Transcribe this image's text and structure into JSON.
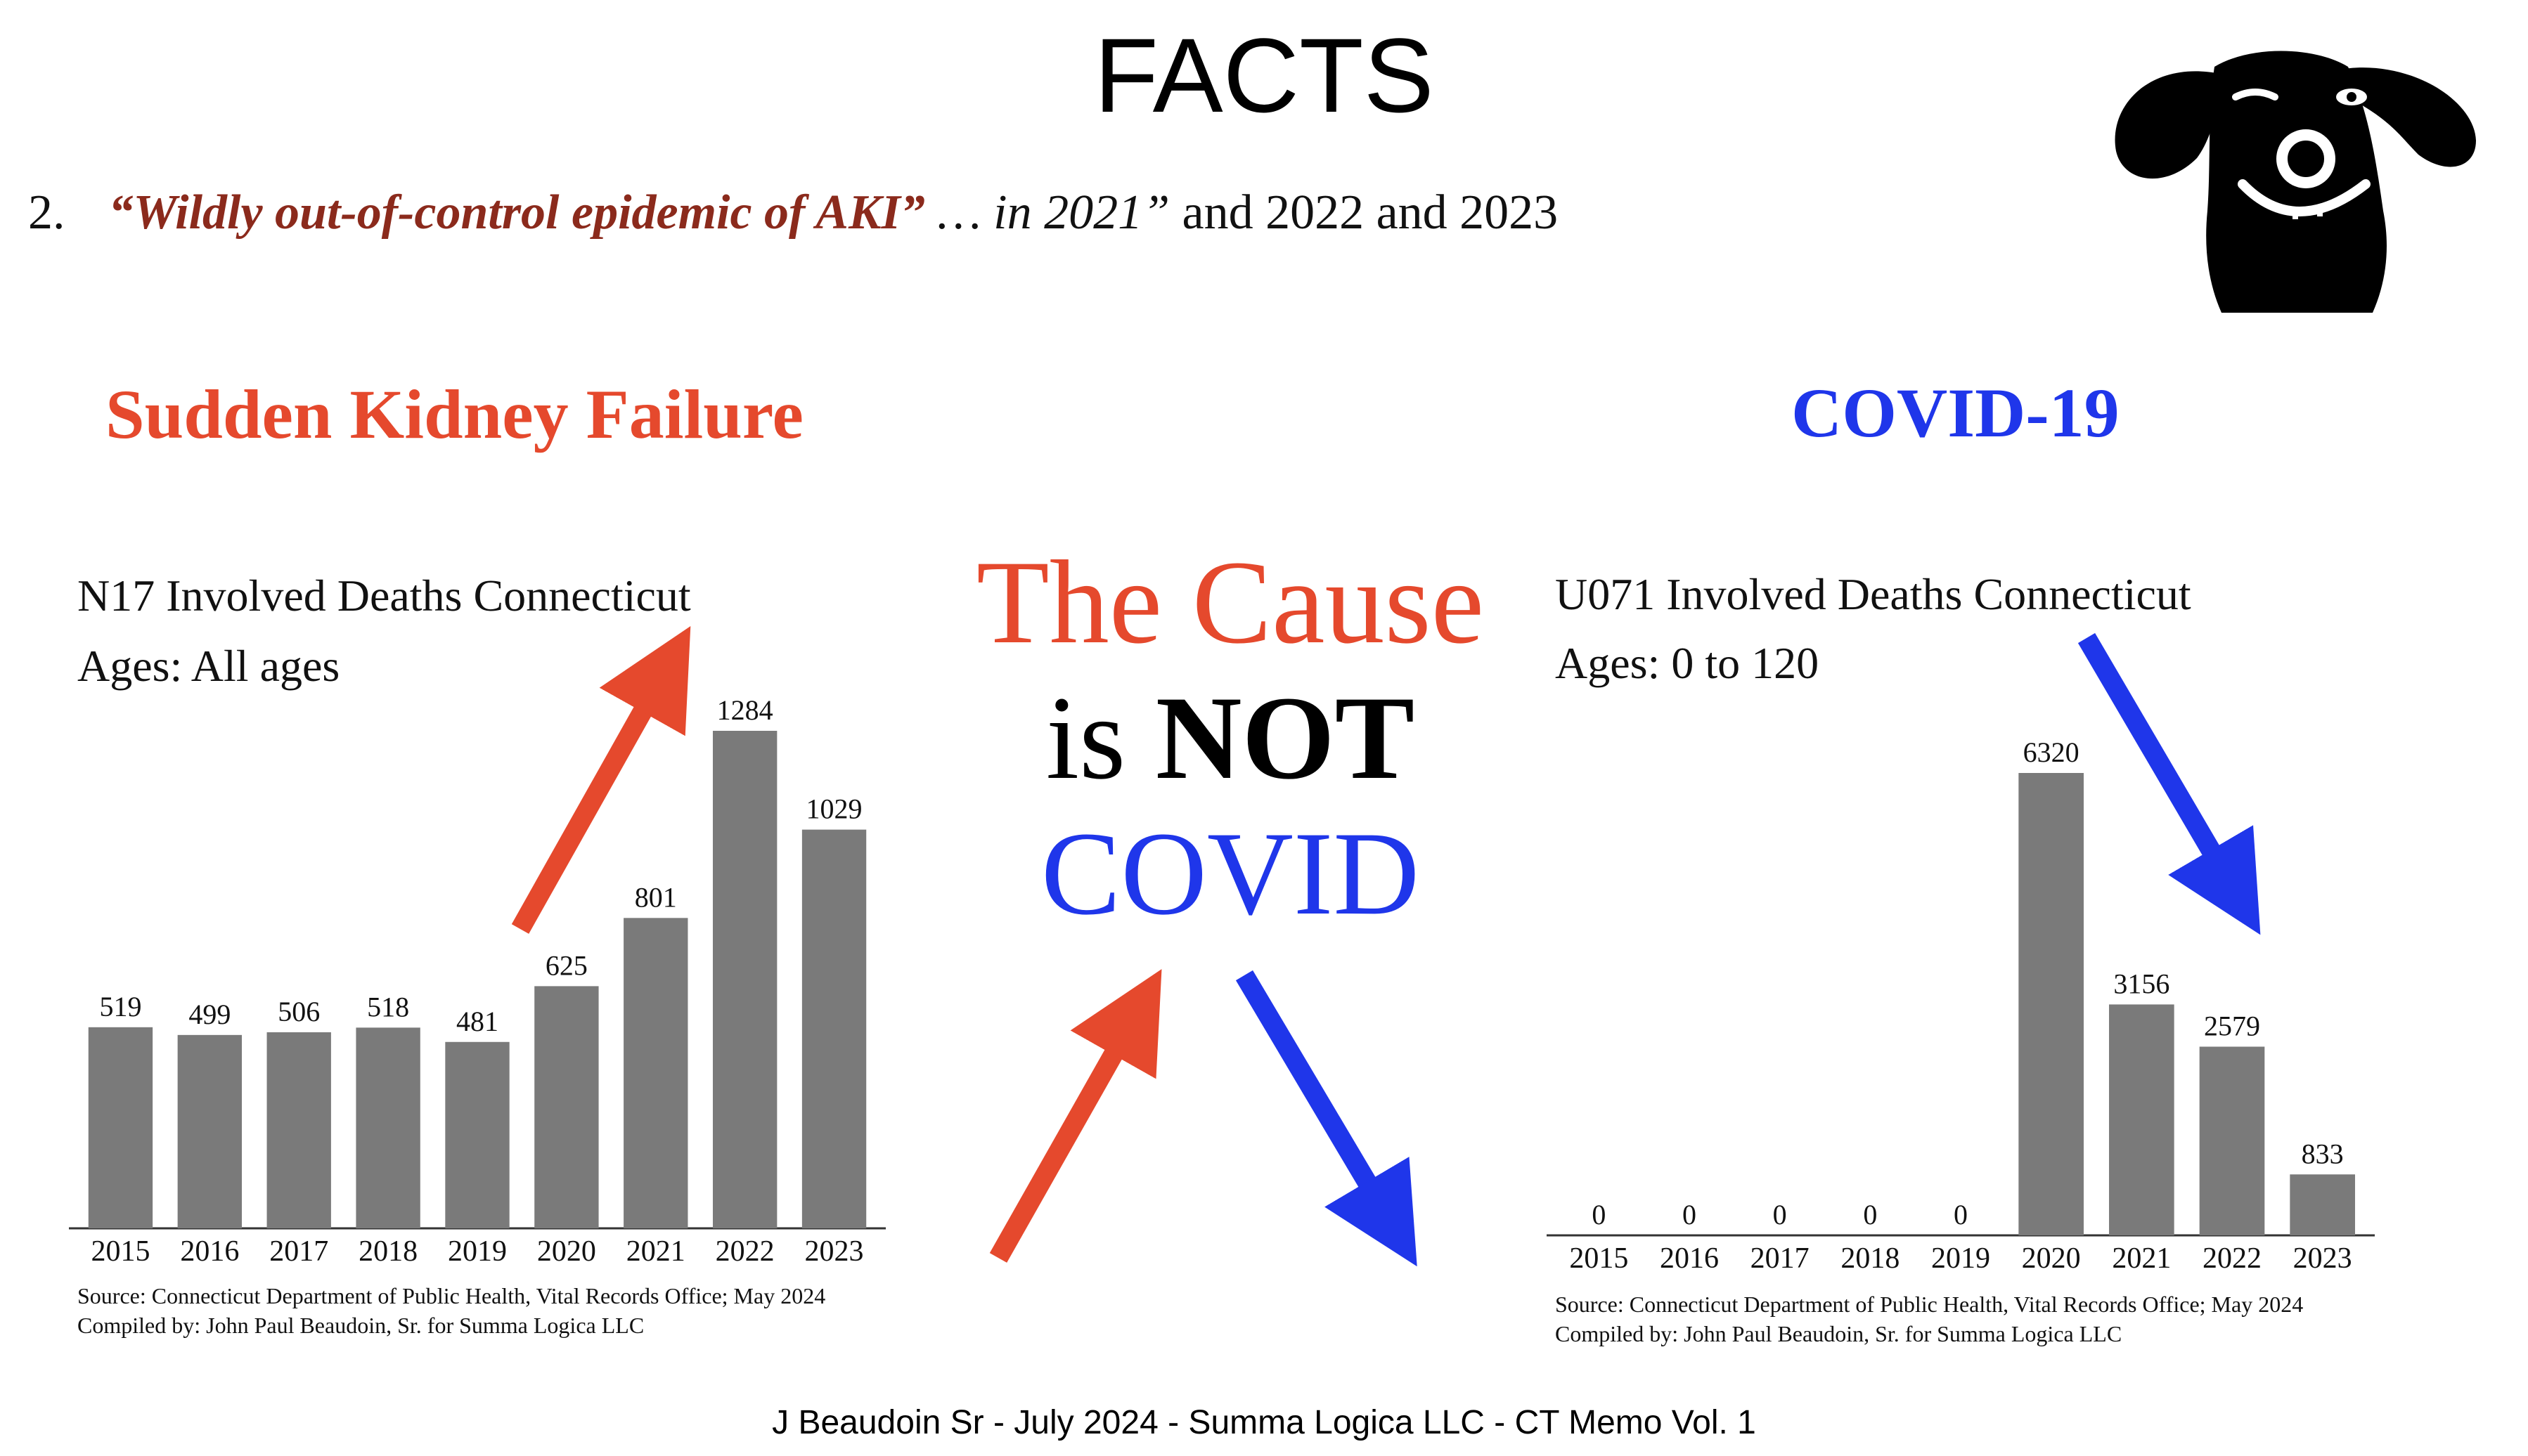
{
  "page": {
    "title": "FACTS",
    "quote": {
      "number": "2.",
      "part1": "“Wildly out-of-control epidemic of AKI”",
      "part2": " … in 2021”",
      "part3": " and 2022 and 2023"
    },
    "left_heading": "Sudden Kidney Failure",
    "right_heading": "COVID-19",
    "center": {
      "line1": "The Cause",
      "line2_pre": "is ",
      "line2_bold": "NOT",
      "line3": "COVID"
    },
    "footer": "J Beaudoin Sr - July 2024 - Summa Logica LLC - CT Memo Vol. 1"
  },
  "chart_data": [
    {
      "type": "bar",
      "title": "N17 Involved Deaths Connecticut",
      "subtitle": "Ages:  All ages",
      "categories": [
        "2015",
        "2016",
        "2017",
        "2018",
        "2019",
        "2020",
        "2021",
        "2022",
        "2023"
      ],
      "values": [
        519,
        499,
        506,
        518,
        481,
        625,
        801,
        1284,
        1029
      ],
      "source": "Source:  Connecticut Department of Public Health, Vital Records Office; May 2024",
      "compiled": "Compiled by:  John Paul Beaudoin, Sr. for Summa Logica LLC",
      "bar_color": "#7a7a7a",
      "ylim": [
        0,
        1284
      ]
    },
    {
      "type": "bar",
      "title": "U071 Involved Deaths Connecticut",
      "subtitle": "Ages:  0 to 120",
      "categories": [
        "2015",
        "2016",
        "2017",
        "2018",
        "2019",
        "2020",
        "2021",
        "2022",
        "2023"
      ],
      "values": [
        0,
        0,
        0,
        0,
        0,
        6320,
        3156,
        2579,
        833
      ],
      "source": "Source:  Connecticut Department of Public Health, Vital Records Office; May 2024",
      "compiled": "Compiled by:  John Paul Beaudoin, Sr. for Summa Logica LLC",
      "bar_color": "#7a7a7a",
      "ylim": [
        0,
        6320
      ]
    }
  ],
  "colors": {
    "red_accent": "#e5492d",
    "blue_accent": "#1f36ea",
    "quote_red": "#8b2a1c"
  },
  "icons": {
    "mascot": "dog-face-icon",
    "arrows": [
      "red-up-arrow-icon",
      "blue-down-arrow-icon"
    ]
  }
}
